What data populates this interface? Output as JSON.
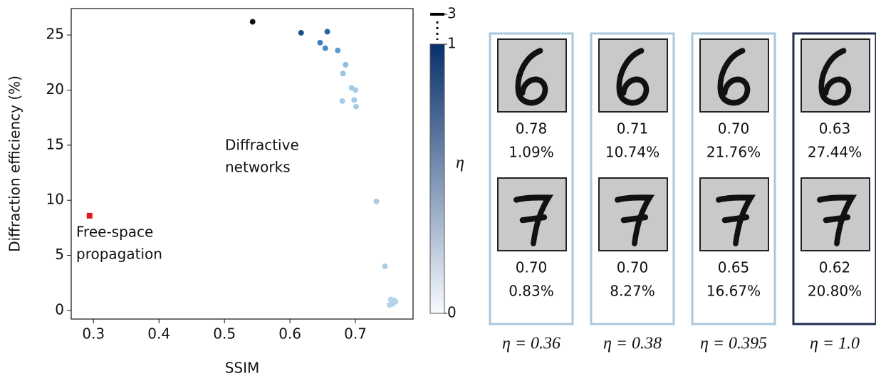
{
  "chart_data": {
    "type": "scatter",
    "xlabel": "SSIM",
    "ylabel": "Diffraction efficiency (%)",
    "xlim": [
      0.266,
      0.788
    ],
    "ylim": [
      -0.78,
      27.4
    ],
    "xticks": [
      0.3,
      0.4,
      0.5,
      0.6,
      0.7
    ],
    "yticks": [
      0,
      5,
      10,
      15,
      20,
      25
    ],
    "series": [
      {
        "marker": "circle",
        "x": [
          0.543,
          0.617,
          0.657,
          0.646,
          0.654,
          0.673,
          0.685,
          0.681,
          0.694,
          0.7,
          0.698,
          0.68,
          0.701,
          0.732,
          0.745,
          0.754,
          0.759,
          0.752,
          0.757,
          0.761
        ],
        "values": [
          26.2,
          25.2,
          25.3,
          24.3,
          23.8,
          23.6,
          22.3,
          21.5,
          20.2,
          20.0,
          19.1,
          19.0,
          18.5,
          9.9,
          4.0,
          1.0,
          0.9,
          0.5,
          0.6,
          0.8
        ],
        "colors": [
          "#111111",
          "#1c4f8c",
          "#2a66a8",
          "#3f82bf",
          "#4a8cc4",
          "#5b9bcc",
          "#8fbddd",
          "#9cc5e1",
          "#a6cbe3",
          "#a6cbe3",
          "#a6cbe3",
          "#a6cbe3",
          "#a6cbe3",
          "#a9cde4",
          "#abcfe5",
          "#b2d3e8",
          "#b2d3e8",
          "#b2d3e8",
          "#b2d3e8",
          "#b2d3e8"
        ]
      },
      {
        "marker": "square",
        "x": [
          0.294
        ],
        "values": [
          8.6
        ],
        "colors": [
          "#e31a1c"
        ]
      }
    ],
    "annotations": [
      {
        "lines": [
          "Diffractive",
          "networks"
        ]
      },
      {
        "lines": [
          "Free-space",
          "propagation"
        ]
      }
    ],
    "colorbar": {
      "label": "η",
      "clim": [
        0,
        1
      ],
      "ticks": [
        0,
        1,
        3
      ],
      "colors": [
        "#f7fbff",
        "#08306b"
      ],
      "top_color": "#000000"
    }
  },
  "panels": [
    {
      "digits": [
        {
          "ssim": "0.78",
          "efficiency": "1.09%"
        },
        {
          "ssim": "0.70",
          "efficiency": "0.83%"
        }
      ],
      "eta": "η = 0.36",
      "border": "#a8c8dc"
    },
    {
      "digits": [
        {
          "ssim": "0.71",
          "efficiency": "10.74%"
        },
        {
          "ssim": "0.70",
          "efficiency": "8.27%"
        }
      ],
      "eta": "η = 0.38",
      "border": "#a8c8dc"
    },
    {
      "digits": [
        {
          "ssim": "0.70",
          "efficiency": "21.76%"
        },
        {
          "ssim": "0.65",
          "efficiency": "16.67%"
        }
      ],
      "eta": "η = 0.395",
      "border": "#a8c8dc"
    },
    {
      "digits": [
        {
          "ssim": "0.63",
          "efficiency": "27.44%"
        },
        {
          "ssim": "0.62",
          "efficiency": "20.80%"
        }
      ],
      "eta": "η = 1.0",
      "border": "#1f2d4f"
    }
  ]
}
